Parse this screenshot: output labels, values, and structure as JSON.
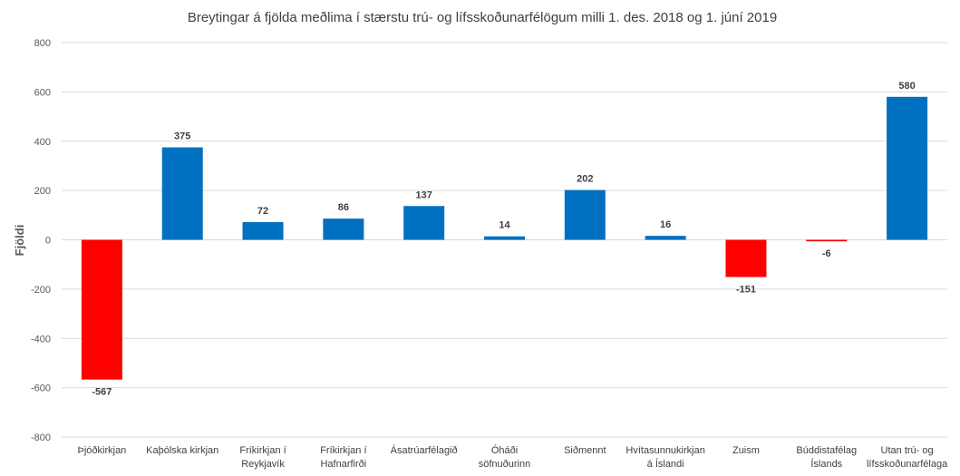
{
  "chart_data": {
    "type": "bar",
    "title": "Breytingar á fjölda meðlima í stærstu trú- og lífsskoðunarfélögum milli 1. des. 2018 og 1. júní 2019",
    "xlabel": "",
    "ylabel": "Fjöldi",
    "ylim": [
      -800,
      800
    ],
    "yticks": [
      800,
      600,
      400,
      200,
      0,
      -200,
      -400,
      -600,
      -800
    ],
    "grid": true,
    "legend": "none",
    "categories": [
      [
        "Þjóðkirkjan"
      ],
      [
        "Kaþólska kirkjan"
      ],
      [
        "Fríkirkjan í",
        "Reykjavík"
      ],
      [
        "Fríkirkjan í",
        "Hafnarfirði"
      ],
      [
        "Ásatrúarfélagið"
      ],
      [
        "Óháði",
        "söfnuðurinn"
      ],
      [
        "Siðmennt"
      ],
      [
        "Hvítasunnukirkjan",
        "á Íslandi"
      ],
      [
        "Zuism"
      ],
      [
        "Búddistafélag",
        "Íslands"
      ],
      [
        "Utan trú- og",
        "lífsskoðunarfélaga"
      ]
    ],
    "values": [
      -567,
      375,
      72,
      86,
      137,
      14,
      202,
      16,
      -151,
      -6,
      580
    ],
    "colors": {
      "positive": "#0070c0",
      "negative": "#ff0000"
    }
  }
}
